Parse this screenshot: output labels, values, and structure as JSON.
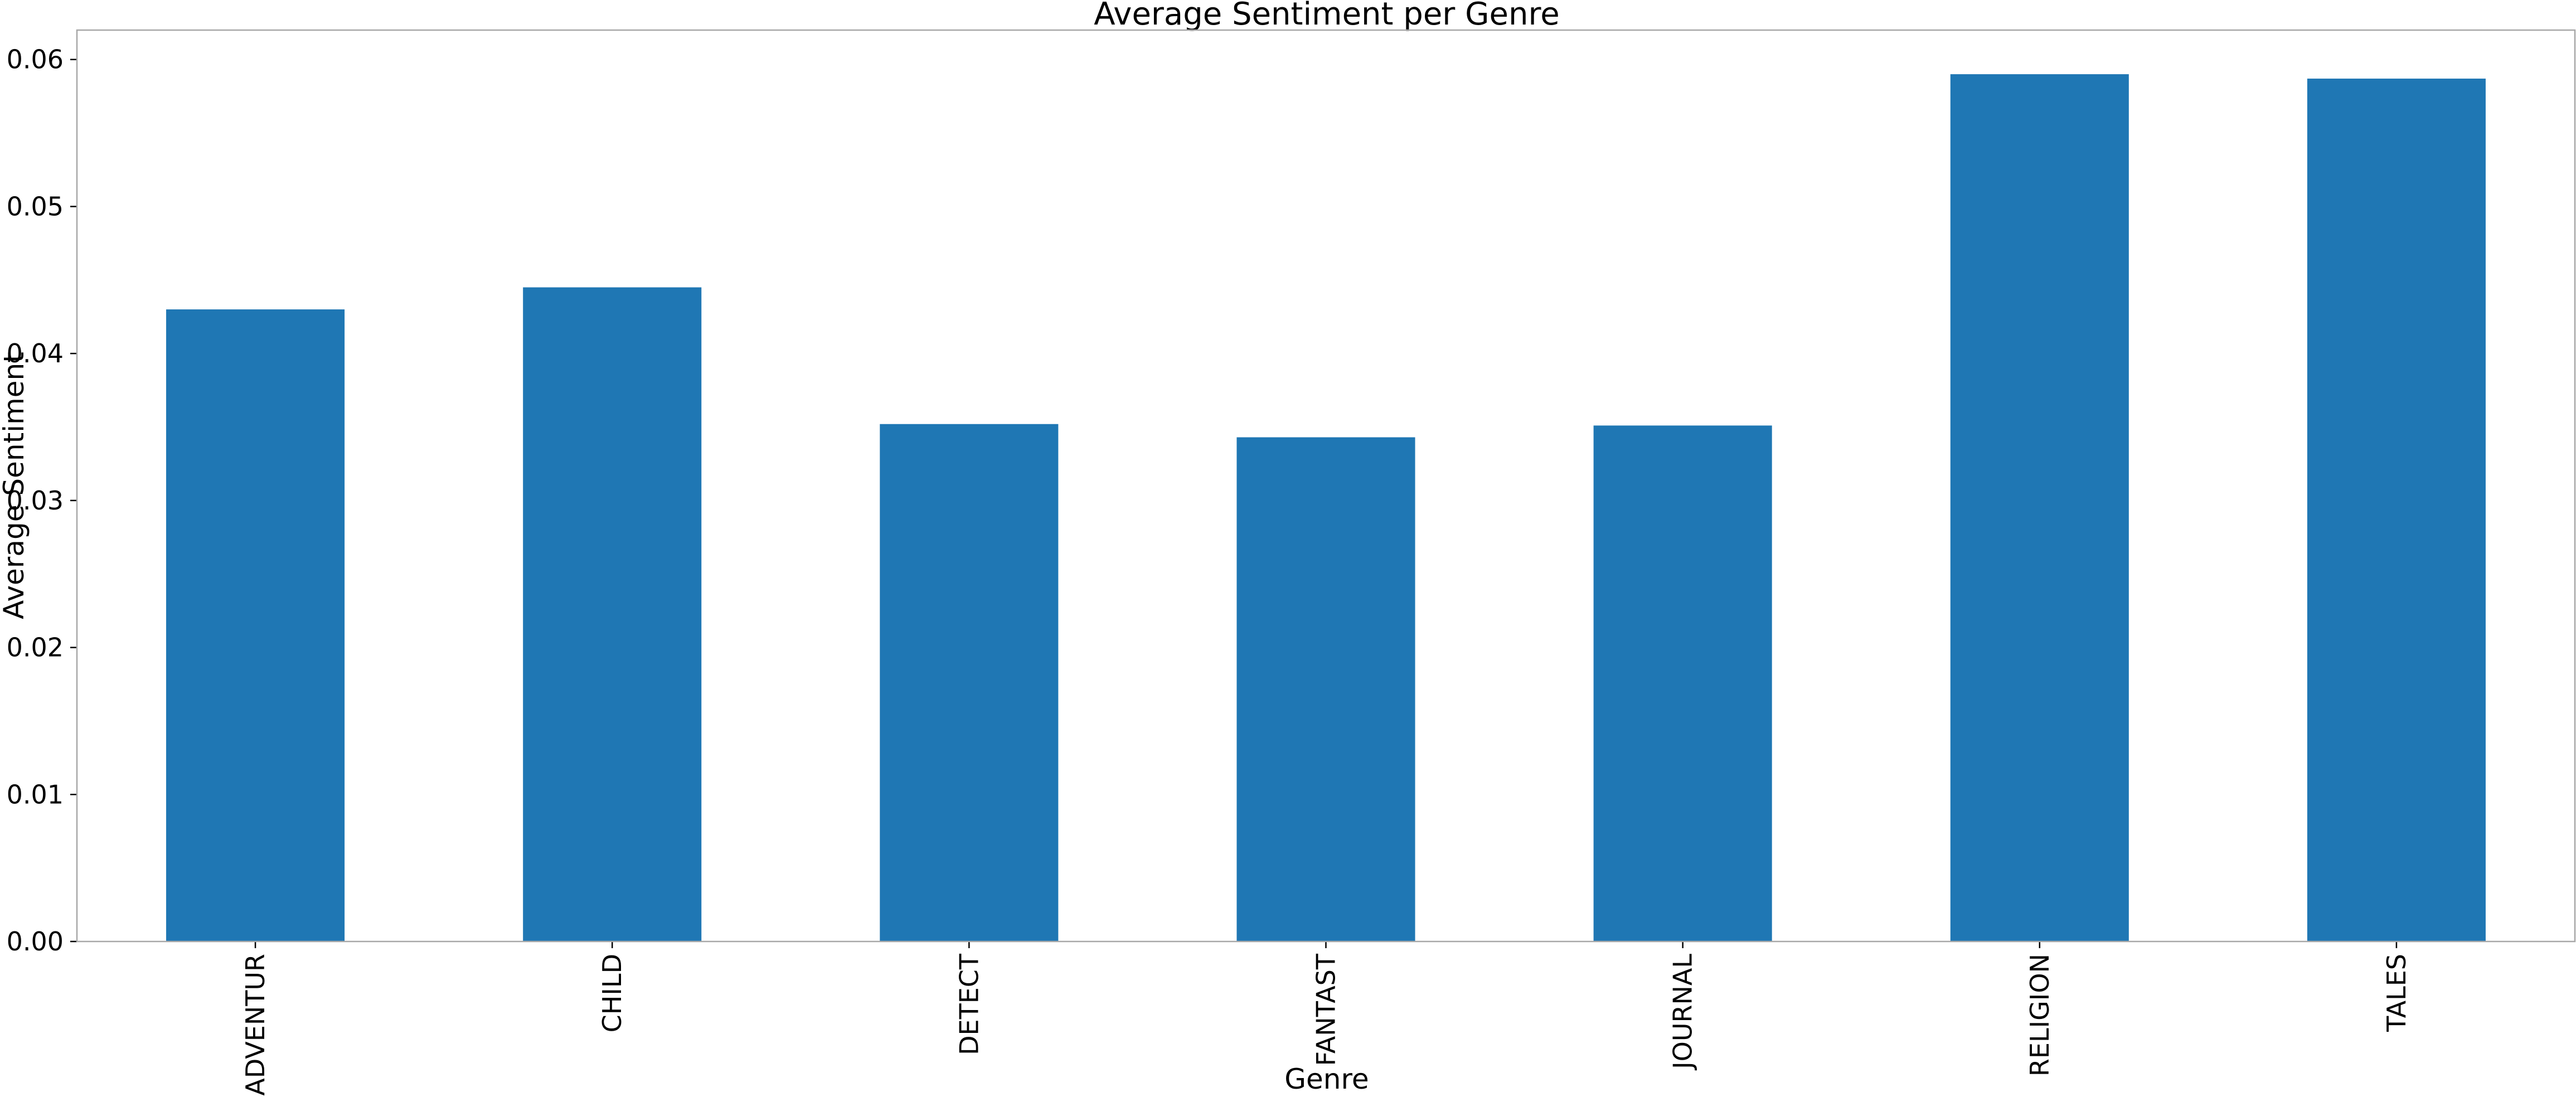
{
  "chart_data": {
    "type": "bar",
    "title": "Average Sentiment per Genre",
    "xlabel": "Genre",
    "ylabel": "Average Sentiment",
    "categories": [
      "ADVENTUR",
      "CHILD",
      "DETECT",
      "FANTAST",
      "JOURNAL",
      "RELIGION",
      "TALES"
    ],
    "values": [
      0.043,
      0.0445,
      0.0352,
      0.0343,
      0.0351,
      0.059,
      0.0587
    ],
    "ylim": [
      0,
      0.062
    ],
    "yticks": [
      0.0,
      0.01,
      0.02,
      0.03,
      0.04,
      0.05,
      0.06
    ],
    "ytick_labels": [
      "0.00",
      "0.01",
      "0.02",
      "0.03",
      "0.04",
      "0.05",
      "0.06"
    ],
    "bar_color": "#1f77b4",
    "grid": false,
    "legend": false
  }
}
